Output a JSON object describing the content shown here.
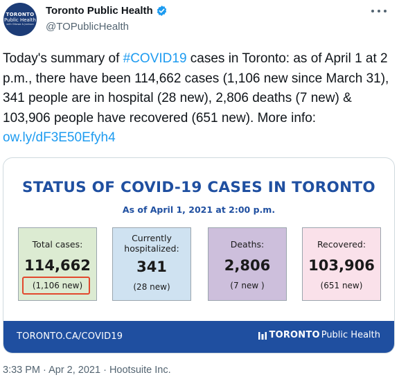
{
  "author": {
    "avatar_line1": "TORONTO",
    "avatar_line2": "Public Health",
    "avatar_line3": "with Ottawa & Jackson",
    "display_name": "Toronto Public Health",
    "handle": "@TOPublicHealth"
  },
  "tweet": {
    "text_before_hashtag": "Today's summary of ",
    "hashtag": "#COVID19",
    "text_after_hashtag": " cases in Toronto: as of April 1 at 2 p.m., there have been 114,662 cases (1,106 new since March 31), 341 people are in hospital (28 new), 2,806 deaths (7 new) & 103,906 people have recovered (651 new). More info: ",
    "link": "ow.ly/dF3E50Efyh4"
  },
  "card": {
    "title": "STATUS OF COVID-19 CASES IN TORONTO",
    "subtitle": "As of April 1, 2021 at 2:00 p.m.",
    "stats": [
      {
        "label": "Total cases:",
        "value": "114,662",
        "new": "(1,106 new)",
        "bg": "#dcebd2"
      },
      {
        "label": "Currently hospitalized:",
        "value": "341",
        "new": "(28 new)",
        "bg": "#cfe2f1"
      },
      {
        "label": "Deaths:",
        "value": "2,806",
        "new": "(7 new )",
        "bg": "#cdbfdc"
      },
      {
        "label": "Recovered:",
        "value": "103,906",
        "new": "(651 new)",
        "bg": "#fae1ea"
      }
    ],
    "footer_url": "TORONTO.CA/COVID19",
    "footer_logo_bold": "TORONTO",
    "footer_logo_rest": "Public Health"
  },
  "meta": {
    "timestamp": "3:33 PM · Apr 2, 2021 · Hootsuite Inc."
  },
  "colors": {
    "accent": "#1d9bf0",
    "card_blue": "#1f4fa0",
    "highlight_red": "#e2482d"
  }
}
